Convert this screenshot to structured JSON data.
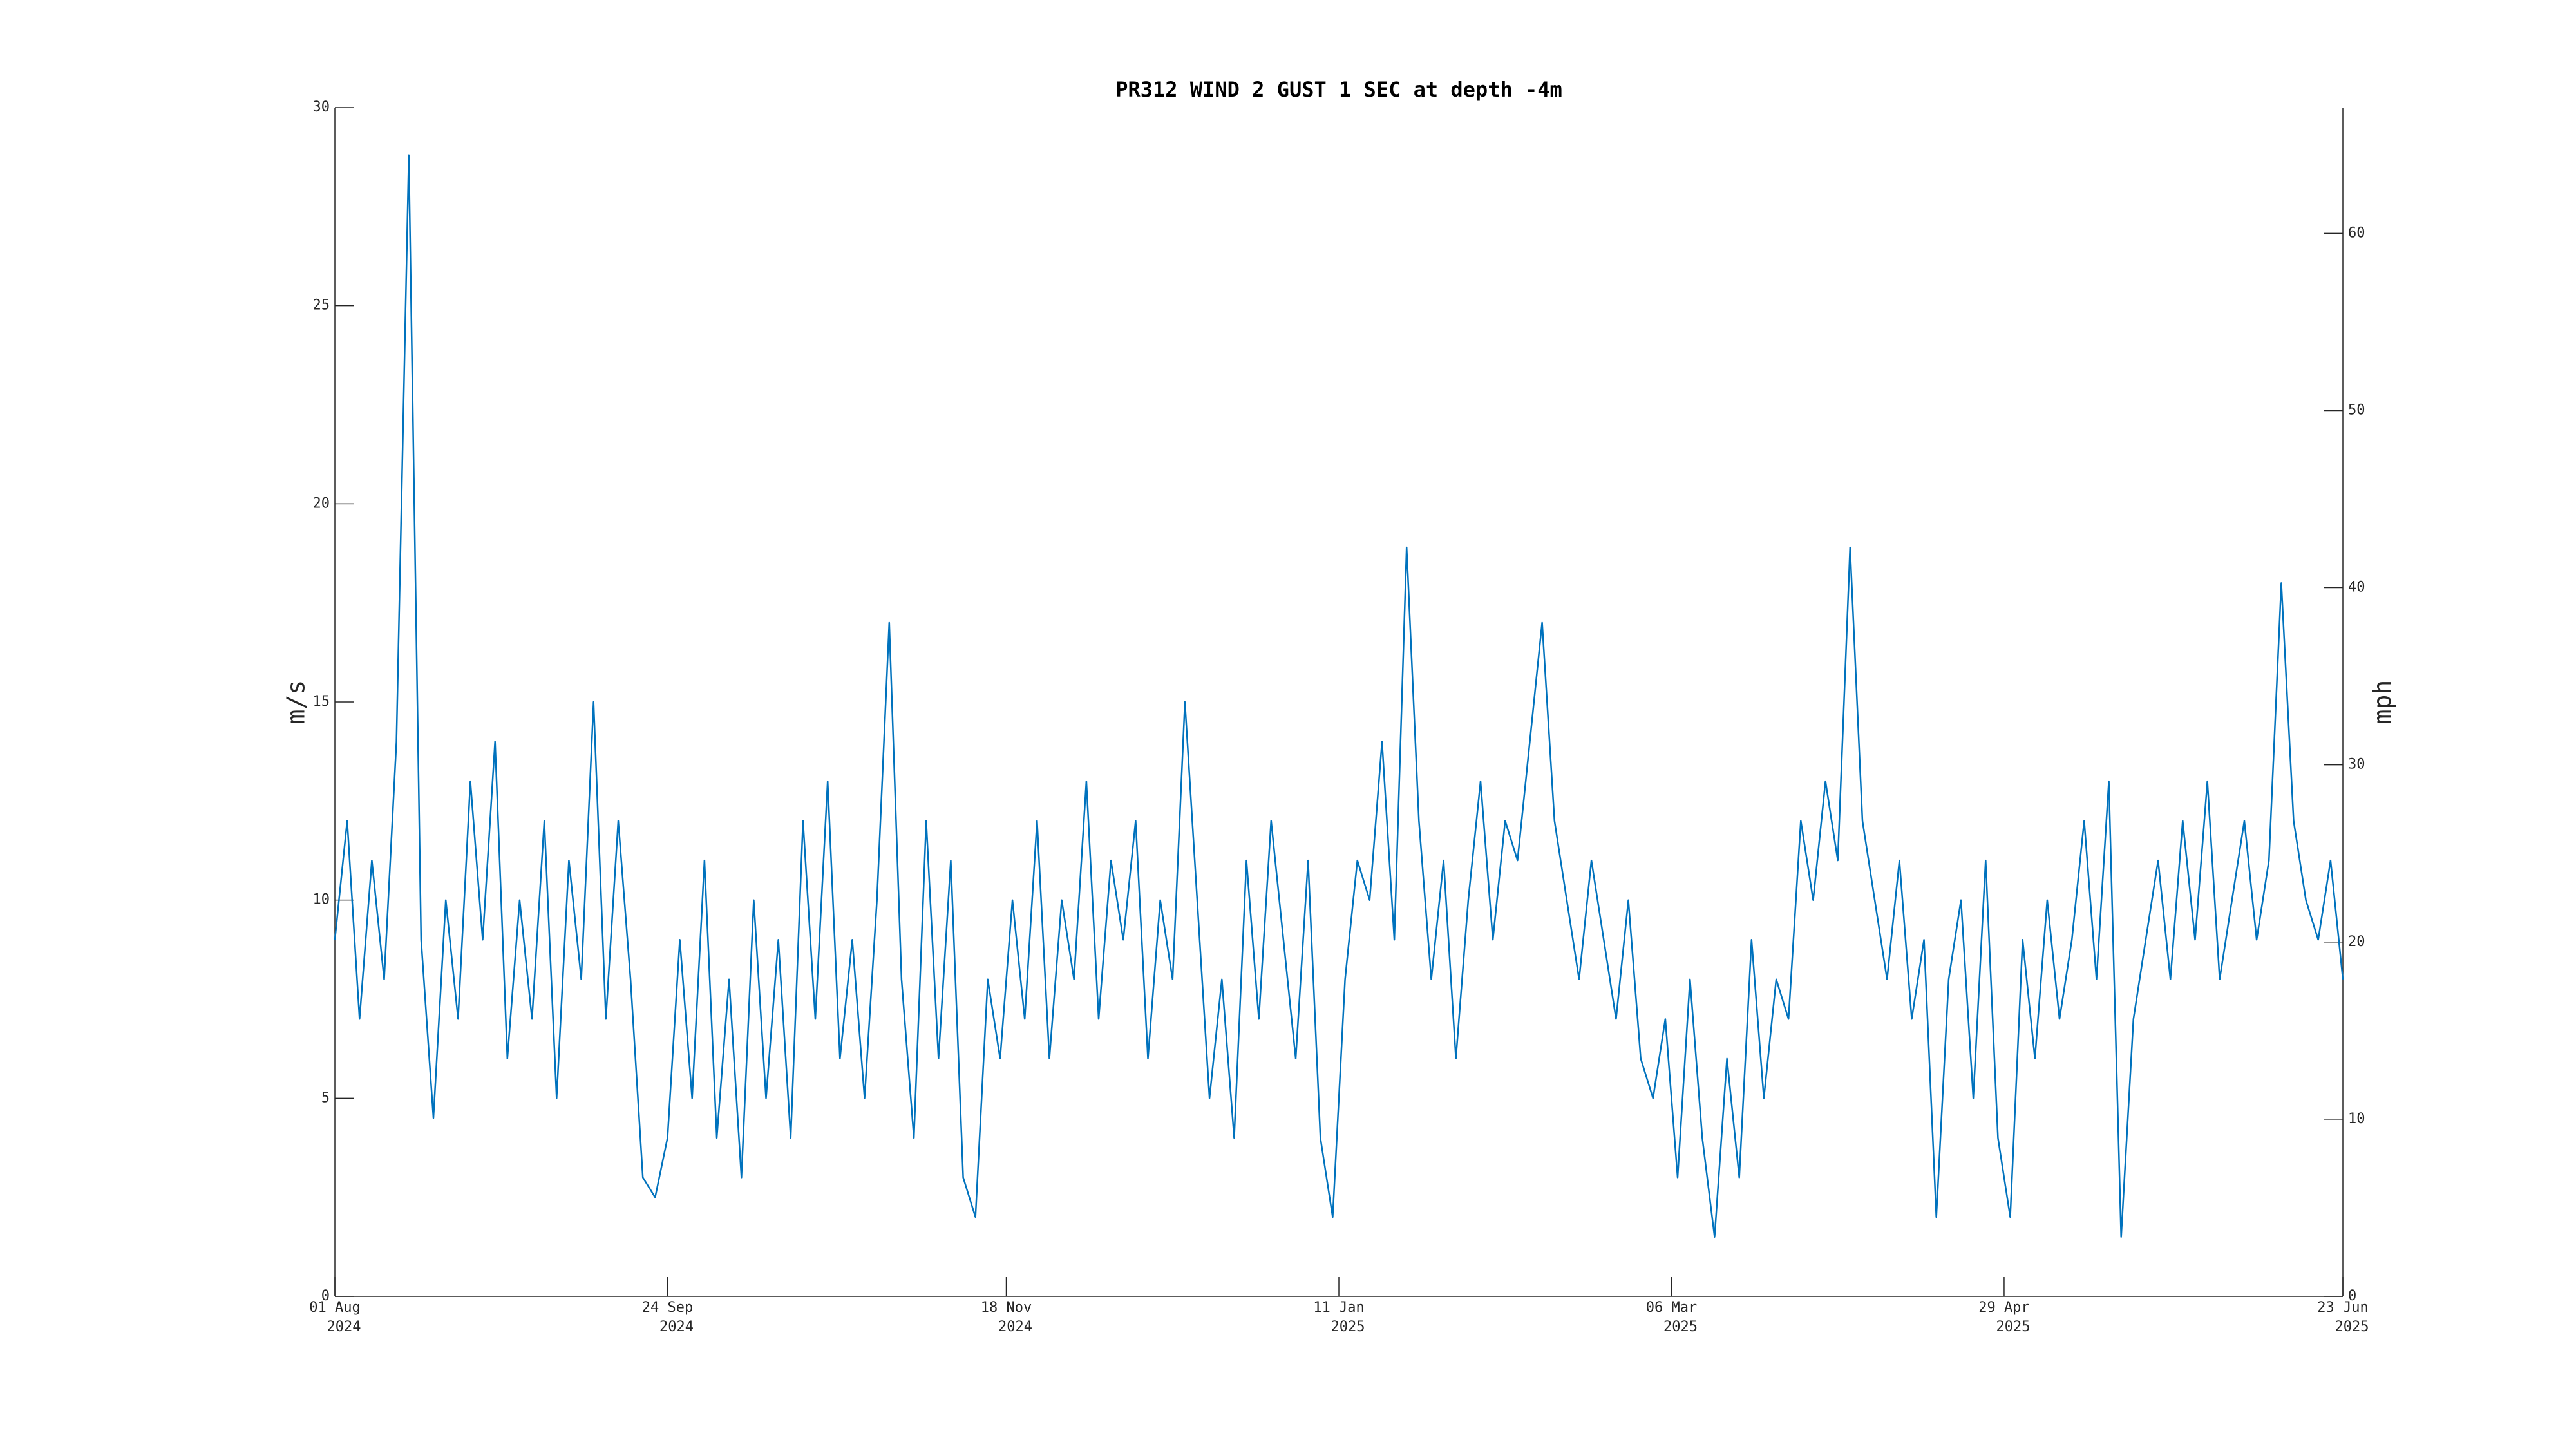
{
  "chart_data": {
    "type": "line",
    "title": "PR312 WIND 2 GUST 1 SEC at depth -4m",
    "ylabel": "m/s",
    "y2label": "mph",
    "x": [
      "2024-08-01",
      "2024-08-03",
      "2024-08-05",
      "2024-08-07",
      "2024-08-09",
      "2024-08-11",
      "2024-08-13",
      "2024-08-15",
      "2024-08-17",
      "2024-08-19",
      "2024-08-21",
      "2024-08-23",
      "2024-08-25",
      "2024-08-27",
      "2024-08-29",
      "2024-08-31",
      "2024-09-02",
      "2024-09-04",
      "2024-09-06",
      "2024-09-08",
      "2024-09-10",
      "2024-09-12",
      "2024-09-14",
      "2024-09-16",
      "2024-09-18",
      "2024-09-20",
      "2024-09-22",
      "2024-09-24",
      "2024-09-26",
      "2024-09-28",
      "2024-09-30",
      "2024-10-02",
      "2024-10-04",
      "2024-10-06",
      "2024-10-08",
      "2024-10-10",
      "2024-10-12",
      "2024-10-14",
      "2024-10-16",
      "2024-10-18",
      "2024-10-20",
      "2024-10-22",
      "2024-10-24",
      "2024-10-26",
      "2024-10-28",
      "2024-10-30",
      "2024-11-01",
      "2024-11-03",
      "2024-11-05",
      "2024-11-07",
      "2024-11-09",
      "2024-11-11",
      "2024-11-13",
      "2024-11-15",
      "2024-11-17",
      "2024-11-19",
      "2024-11-21",
      "2024-11-23",
      "2024-11-25",
      "2024-11-27",
      "2024-11-29",
      "2024-12-01",
      "2024-12-03",
      "2024-12-05",
      "2024-12-07",
      "2024-12-09",
      "2024-12-11",
      "2024-12-13",
      "2024-12-15",
      "2024-12-17",
      "2024-12-19",
      "2024-12-21",
      "2024-12-23",
      "2024-12-25",
      "2024-12-27",
      "2024-12-29",
      "2024-12-31",
      "2025-01-02",
      "2025-01-04",
      "2025-01-06",
      "2025-01-08",
      "2025-01-10",
      "2025-01-12",
      "2025-01-14",
      "2025-01-16",
      "2025-01-18",
      "2025-01-20",
      "2025-01-22",
      "2025-01-24",
      "2025-01-26",
      "2025-01-28",
      "2025-01-30",
      "2025-02-01",
      "2025-02-03",
      "2025-02-05",
      "2025-02-07",
      "2025-02-09",
      "2025-02-11",
      "2025-02-13",
      "2025-02-15",
      "2025-02-17",
      "2025-02-19",
      "2025-02-21",
      "2025-02-23",
      "2025-02-25",
      "2025-02-27",
      "2025-03-01",
      "2025-03-03",
      "2025-03-05",
      "2025-03-07",
      "2025-03-09",
      "2025-03-11",
      "2025-03-13",
      "2025-03-15",
      "2025-03-17",
      "2025-03-19",
      "2025-03-21",
      "2025-03-23",
      "2025-03-25",
      "2025-03-27",
      "2025-03-29",
      "2025-03-31",
      "2025-04-02",
      "2025-04-04",
      "2025-04-06",
      "2025-04-08",
      "2025-04-10",
      "2025-04-12",
      "2025-04-14",
      "2025-04-16",
      "2025-04-18",
      "2025-04-20",
      "2025-04-22",
      "2025-04-24",
      "2025-04-26",
      "2025-04-28",
      "2025-04-30",
      "2025-05-02",
      "2025-05-04",
      "2025-05-06",
      "2025-05-08",
      "2025-05-10",
      "2025-05-12",
      "2025-05-14",
      "2025-05-16",
      "2025-05-18",
      "2025-05-20",
      "2025-05-22",
      "2025-05-24",
      "2025-05-26",
      "2025-05-28",
      "2025-05-30",
      "2025-06-01",
      "2025-06-03",
      "2025-06-05",
      "2025-06-07",
      "2025-06-09",
      "2025-06-11",
      "2025-06-13",
      "2025-06-15",
      "2025-06-17",
      "2025-06-19",
      "2025-06-21",
      "2025-06-23"
    ],
    "series": [
      {
        "name": "PR312 WIND 2 GUST 1 SEC",
        "color": "#0072bd",
        "values": [
          9,
          12,
          7,
          11,
          8,
          14,
          28.8,
          9,
          4.5,
          10,
          7,
          13,
          9,
          14,
          6,
          10,
          7,
          12,
          5,
          11,
          8,
          15,
          7,
          12,
          8,
          3,
          2.5,
          4,
          9,
          5,
          11,
          4,
          8,
          3,
          10,
          5,
          9,
          4,
          12,
          7,
          13,
          6,
          9,
          5,
          10,
          17,
          8,
          4,
          12,
          6,
          11,
          3,
          2,
          8,
          6,
          10,
          7,
          12,
          6,
          10,
          8,
          13,
          7,
          11,
          9,
          12,
          6,
          10,
          8,
          15,
          10,
          5,
          8,
          4,
          11,
          7,
          12,
          9,
          6,
          11,
          4,
          2,
          8,
          11,
          10,
          14,
          9,
          18.9,
          12,
          8,
          11,
          6,
          10,
          13,
          9,
          12,
          11,
          14,
          17,
          12,
          10,
          8,
          11,
          9,
          7,
          10,
          6,
          5,
          7,
          3,
          8,
          4,
          1.5,
          6,
          3,
          9,
          5,
          8,
          7,
          12,
          10,
          13,
          11,
          18.9,
          12,
          10,
          8,
          11,
          7,
          9,
          2,
          8,
          10,
          5,
          11,
          4,
          2,
          9,
          6,
          10,
          7,
          9,
          12,
          8,
          13,
          1.5,
          7,
          9,
          11,
          8,
          12,
          9,
          13,
          8,
          10,
          12,
          9,
          11,
          18,
          12,
          10,
          9,
          11,
          8
        ]
      }
    ],
    "xlim": [
      "2024-08-01",
      "2025-06-23"
    ],
    "xticks": [
      {
        "value": "2024-08-01",
        "label": [
          "01 Aug",
          "2024"
        ]
      },
      {
        "value": "2024-09-24",
        "label": [
          "24 Sep",
          "2024"
        ]
      },
      {
        "value": "2024-11-18",
        "label": [
          "18 Nov",
          "2024"
        ]
      },
      {
        "value": "2025-01-11",
        "label": [
          "11 Jan",
          "2025"
        ]
      },
      {
        "value": "2025-03-06",
        "label": [
          "06 Mar",
          "2025"
        ]
      },
      {
        "value": "2025-04-29",
        "label": [
          "29 Apr",
          "2025"
        ]
      },
      {
        "value": "2025-06-23",
        "label": [
          "23 Jun",
          "2025"
        ]
      }
    ],
    "ylim": [
      0,
      30
    ],
    "yticks": [
      0,
      5,
      10,
      15,
      20,
      25,
      30
    ],
    "y2lim": [
      0,
      67.1
    ],
    "y2ticks": [
      0,
      10,
      20,
      30,
      40,
      50,
      60
    ],
    "grid": false
  }
}
